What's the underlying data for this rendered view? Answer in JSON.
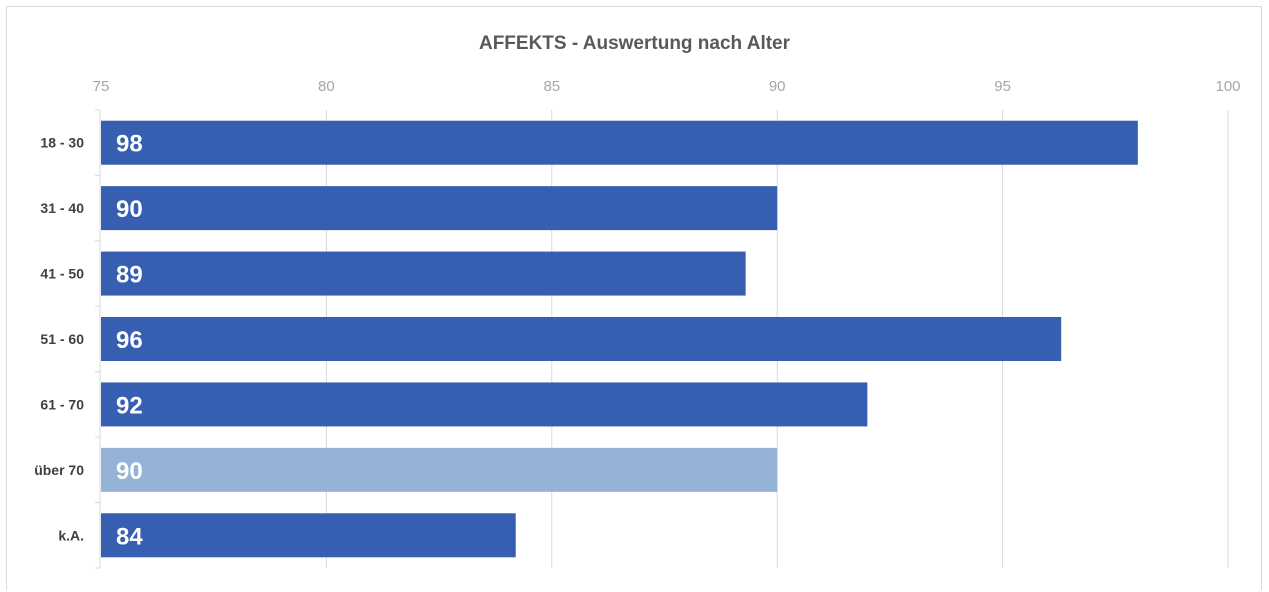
{
  "chart_data": {
    "type": "bar",
    "orientation": "horizontal",
    "title": "AFFEKTS - Auswertung nach Alter",
    "xlabel": "",
    "ylabel": "",
    "xlim": [
      75,
      100
    ],
    "x_ticks": [
      75,
      80,
      85,
      90,
      95,
      100
    ],
    "x_axis_position": "top",
    "grid": "vertical",
    "legend": "none",
    "categories": [
      "18 - 30",
      "31 - 40",
      "41 - 50",
      "51 - 60",
      "61 - 70",
      "über 70",
      "k.A."
    ],
    "values": [
      98,
      90,
      89.3,
      96.3,
      92,
      90,
      84.2
    ],
    "data_labels": [
      "98",
      "90",
      "89",
      "96",
      "92",
      "90",
      "84"
    ],
    "highlight_index": 5,
    "colors": {
      "bar": "#365fb1",
      "highlight": "#95b3d7",
      "grid": "#d9d9d9",
      "tick_text": "#a6a6a6",
      "category_text": "#404040",
      "label_text": "#ffffff"
    }
  }
}
